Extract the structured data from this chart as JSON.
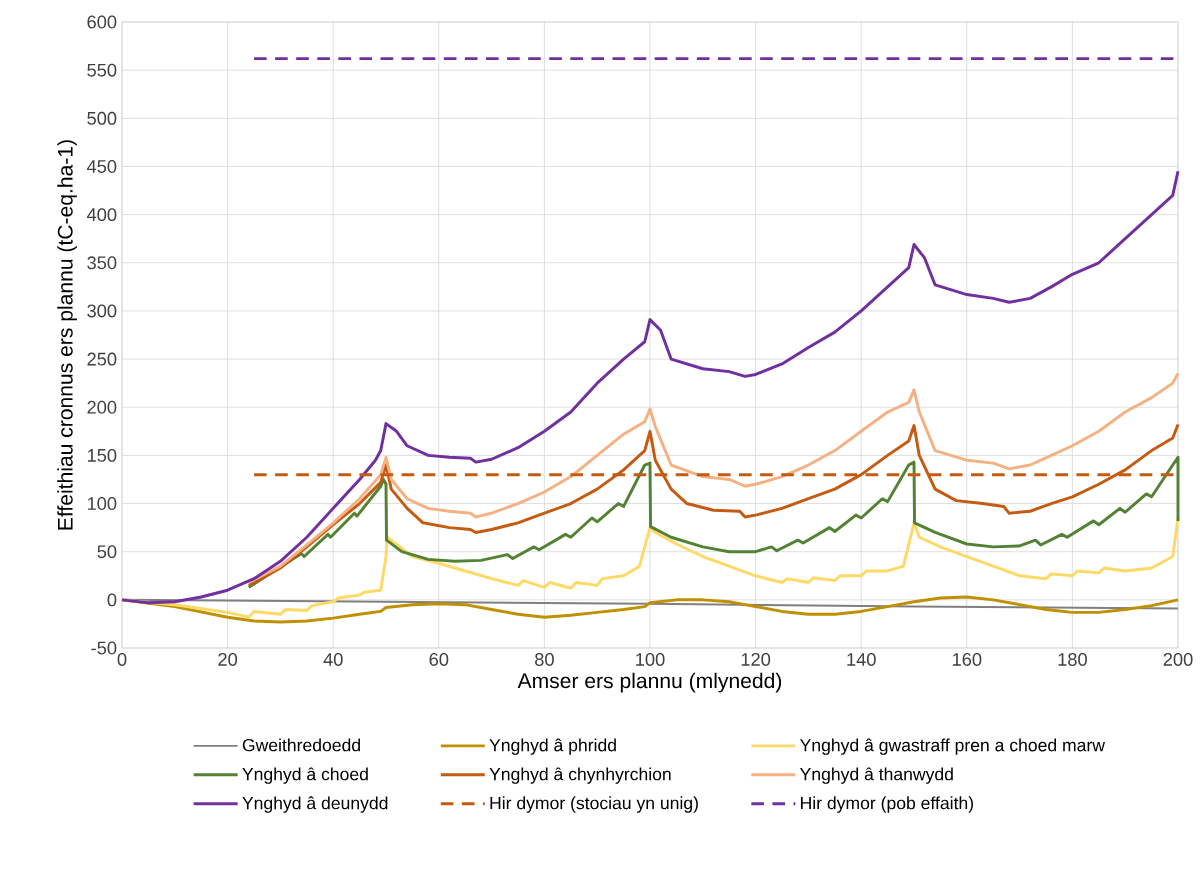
{
  "chart_data": {
    "type": "line",
    "xlabel": "Amser ers plannu (mlynedd)",
    "ylabel": "Effeithiau cronnus ers plannu (tC-eq.ha-1)",
    "xlim": [
      0,
      200
    ],
    "xticks": [
      0,
      20,
      40,
      60,
      80,
      100,
      120,
      140,
      160,
      180,
      200
    ],
    "ylim": [
      -50,
      600
    ],
    "yticks": [
      -50,
      0,
      50,
      100,
      150,
      200,
      250,
      300,
      350,
      400,
      450,
      500,
      550,
      600
    ],
    "grid": true,
    "legend": "bottom",
    "series": [
      {
        "name": "Gweithredoedd",
        "color": "#808080",
        "x": [
          0,
          50,
          100,
          150,
          200
        ],
        "values": [
          0,
          -2,
          -4,
          -7,
          -9
        ]
      },
      {
        "name": "Ynghyd â phridd",
        "color": "#bf9000",
        "x": [
          0,
          10,
          20,
          25,
          30,
          35,
          40,
          45,
          49,
          50,
          55,
          60,
          65,
          70,
          75,
          80,
          85,
          90,
          95,
          99,
          100,
          105,
          110,
          115,
          120,
          125,
          130,
          135,
          140,
          145,
          150,
          155,
          160,
          165,
          170,
          175,
          180,
          185,
          190,
          195,
          200
        ],
        "values": [
          0,
          -7,
          -18,
          -22,
          -23,
          -22,
          -19,
          -15,
          -12,
          -8,
          -5,
          -4,
          -5,
          -10,
          -15,
          -18,
          -16,
          -13,
          -10,
          -7,
          -3,
          0,
          0,
          -2,
          -7,
          -12,
          -15,
          -15,
          -12,
          -7,
          -2,
          2,
          3,
          0,
          -5,
          -10,
          -13,
          -13,
          -10,
          -6,
          0
        ]
      },
      {
        "name": "Ynghyd â gwastraff pren a choed marw",
        "color": "#ffd966",
        "x": [
          0,
          10,
          20,
          24,
          25,
          30,
          31,
          35,
          36,
          40,
          41,
          45,
          46,
          49,
          50,
          50.2,
          55,
          60,
          65,
          70,
          75,
          76,
          80,
          81,
          85,
          86,
          90,
          91,
          95,
          98,
          100,
          101,
          105,
          110,
          115,
          120,
          125,
          126,
          130,
          131,
          135,
          136,
          140,
          141,
          145,
          148,
          150,
          151,
          155,
          160,
          165,
          170,
          175,
          176,
          180,
          181,
          185,
          186,
          190,
          195,
          199,
          200
        ],
        "values": [
          0,
          -5,
          -13,
          -18,
          -12,
          -15,
          -10,
          -11,
          -6,
          -2,
          2,
          5,
          8,
          10,
          45,
          65,
          45,
          38,
          30,
          22,
          15,
          20,
          13,
          18,
          12,
          18,
          15,
          22,
          25,
          35,
          75,
          70,
          58,
          45,
          35,
          25,
          18,
          22,
          18,
          23,
          20,
          25,
          25,
          30,
          30,
          35,
          80,
          65,
          55,
          45,
          35,
          25,
          22,
          27,
          25,
          30,
          28,
          33,
          30,
          33,
          45,
          85
        ]
      },
      {
        "name": "Ynghyd â choed",
        "color": "#548235",
        "x": [
          24,
          34,
          34.5,
          39,
          39.5,
          44,
          44.5,
          49,
          49.5,
          50,
          50.1,
          53,
          58,
          63,
          68,
          73,
          74,
          78,
          79,
          84,
          85,
          89,
          90,
          94,
          95,
          99,
          100,
          100.1,
          104,
          110,
          115,
          120,
          123,
          124,
          128,
          129,
          134,
          135,
          139,
          140,
          144,
          145,
          149,
          150,
          150.1,
          154,
          160,
          165,
          170,
          173,
          174,
          178,
          179,
          184,
          185,
          189,
          190,
          194,
          195,
          199,
          200,
          200
        ],
        "values": [
          13,
          48,
          45,
          68,
          65,
          90,
          87,
          118,
          125,
          120,
          62,
          50,
          42,
          40,
          41,
          47,
          43,
          55,
          52,
          68,
          65,
          85,
          81,
          100,
          97,
          140,
          142,
          76,
          65,
          55,
          50,
          50,
          55,
          51,
          62,
          59,
          75,
          71,
          88,
          85,
          105,
          102,
          140,
          143,
          80,
          70,
          58,
          55,
          56,
          62,
          57,
          68,
          65,
          82,
          78,
          95,
          91,
          110,
          107,
          140,
          148,
          82
        ]
      },
      {
        "name": "Ynghyd â chynhyrchion",
        "color": "#c55a11",
        "x": [
          24,
          30,
          35,
          40,
          45,
          49,
          50,
          51,
          54,
          57,
          62,
          66,
          67,
          70,
          75,
          80,
          85,
          90,
          95,
          99,
          100,
          101,
          104,
          107,
          112,
          117,
          118,
          120,
          125,
          130,
          135,
          140,
          145,
          149,
          150,
          151,
          154,
          158,
          163,
          167,
          168,
          172,
          176,
          180,
          185,
          190,
          195,
          199,
          200
        ],
        "values": [
          15,
          33,
          55,
          78,
          100,
          122,
          140,
          115,
          95,
          80,
          75,
          73,
          70,
          73,
          80,
          90,
          100,
          115,
          135,
          155,
          175,
          145,
          115,
          100,
          93,
          92,
          86,
          88,
          95,
          105,
          115,
          130,
          150,
          165,
          181,
          150,
          115,
          103,
          100,
          97,
          90,
          92,
          100,
          107,
          120,
          135,
          155,
          168,
          182
        ]
      },
      {
        "name": "Ynghyd â thanwydd",
        "color": "#f4b183",
        "x": [
          24,
          30,
          35,
          40,
          45,
          49,
          50,
          51,
          54,
          58,
          62,
          66,
          67,
          70,
          75,
          80,
          85,
          90,
          95,
          99,
          100,
          101,
          104,
          110,
          115,
          118,
          120,
          125,
          130,
          135,
          140,
          145,
          149,
          150,
          151,
          154,
          160,
          165,
          168,
          172,
          176,
          180,
          185,
          190,
          195,
          199,
          200
        ],
        "values": [
          18,
          35,
          57,
          80,
          105,
          130,
          148,
          125,
          105,
          95,
          92,
          90,
          86,
          90,
          100,
          112,
          128,
          150,
          172,
          185,
          198,
          180,
          140,
          128,
          125,
          118,
          120,
          128,
          140,
          155,
          175,
          195,
          205,
          218,
          195,
          155,
          145,
          142,
          136,
          140,
          150,
          160,
          175,
          195,
          210,
          225,
          235
        ]
      },
      {
        "name": "Ynghyd â deunydd",
        "color": "#7030a0",
        "x": [
          0,
          5,
          10,
          15,
          20,
          25,
          30,
          35,
          40,
          45,
          48,
          49,
          50,
          52,
          54,
          58,
          62,
          66,
          67,
          70,
          75,
          80,
          85,
          90,
          95,
          99,
          100,
          102,
          104,
          110,
          115,
          118,
          120,
          125,
          130,
          135,
          140,
          145,
          149,
          150,
          152,
          154,
          160,
          165,
          168,
          172,
          176,
          180,
          185,
          190,
          195,
          199,
          200
        ],
        "values": [
          0,
          -3,
          -2,
          3,
          10,
          22,
          40,
          65,
          95,
          125,
          145,
          155,
          183,
          175,
          160,
          150,
          148,
          147,
          143,
          146,
          158,
          175,
          195,
          225,
          250,
          268,
          291,
          280,
          250,
          240,
          237,
          232,
          234,
          245,
          262,
          278,
          300,
          325,
          345,
          369,
          355,
          327,
          317,
          313,
          309,
          313,
          325,
          338,
          350,
          375,
          400,
          420,
          445
        ]
      },
      {
        "name": "Hir dymor (stociau yn unig)",
        "color": "#c55a11",
        "line_style": "dashed",
        "x": [
          25,
          200
        ],
        "values": [
          130,
          130
        ]
      },
      {
        "name": "Hir dymor (pob effaith)",
        "color": "#7030a0",
        "line_style": "dashed",
        "x": [
          25,
          200
        ],
        "values": [
          562,
          562
        ]
      }
    ]
  }
}
